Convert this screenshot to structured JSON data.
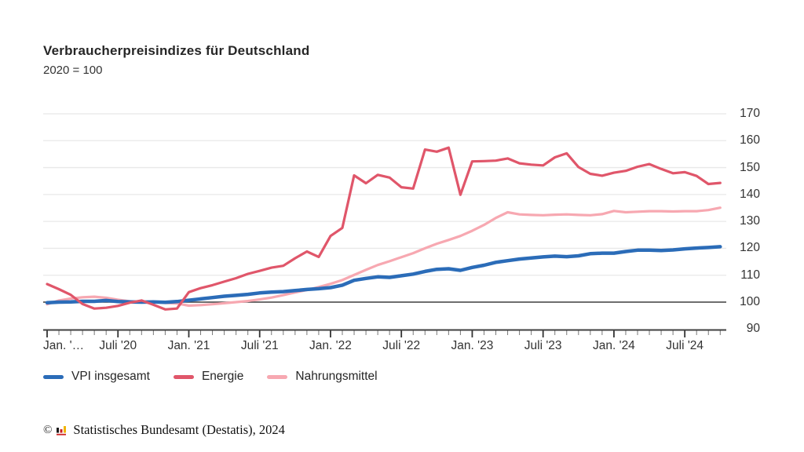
{
  "page": {
    "title": "Verbraucherpreisindizes für Deutschland",
    "subtitle": "2020 = 100",
    "footer": {
      "copyright": "©",
      "source": "Statistisches Bundesamt (Destatis), 2024"
    }
  },
  "colors": {
    "vpi_blue": "#2b6cb8",
    "energie_red": "#e0566a",
    "nahrungsmittel_pink": "#f7a8b1",
    "gridline": "#e8e8e8",
    "baseline": "#3f3f3f",
    "axis": "#404040",
    "tick_minor": "#777777",
    "tick_major": "#333333",
    "logo_black": "#1a1a1a",
    "logo_red": "#cc2222",
    "logo_gold": "#f0b400"
  },
  "chart_data": {
    "type": "line",
    "title": "Verbraucherpreisindizes für Deutschland",
    "subtitle": "2020 = 100",
    "x_unit": "month",
    "x_range": "Jan 2020 – Okt 2024",
    "x_tick_labels": [
      "Jan. '…",
      "Juli '20",
      "Jan. '21",
      "Juli '21",
      "Jan. '22",
      "Juli '22",
      "Jan. '23",
      "Juli '23",
      "Jan. '24",
      "Juli '24"
    ],
    "y_ticks": [
      170,
      160,
      150,
      140,
      130,
      120,
      110,
      100,
      90
    ],
    "ylim": [
      90,
      170
    ],
    "baseline": 100,
    "grid": "horizontal",
    "legend_position": "bottom-left",
    "draw_order": [
      2,
      0,
      1
    ],
    "series": [
      {
        "name": "VPI insgesamt",
        "color": "#2b6cb8",
        "width": 4.5,
        "values": [
          99.8,
          100.0,
          100.1,
          100.3,
          100.3,
          100.6,
          100.2,
          100.1,
          100.0,
          100.1,
          99.9,
          100.2,
          100.7,
          101.2,
          101.7,
          102.2,
          102.5,
          102.9,
          103.4,
          103.7,
          103.9,
          104.3,
          104.7,
          105.0,
          105.4,
          106.3,
          108.1,
          108.8,
          109.4,
          109.2,
          109.8,
          110.4,
          111.4,
          112.2,
          112.4,
          111.8,
          112.9,
          113.7,
          114.8,
          115.4,
          116.0,
          116.4,
          116.8,
          117.1,
          116.9,
          117.2,
          118.0,
          118.2,
          118.2,
          118.8,
          119.3,
          119.3,
          119.2,
          119.4,
          119.8,
          120.1,
          120.3,
          120.6
        ]
      },
      {
        "name": "Energie",
        "color": "#e0566a",
        "width": 3.2,
        "values": [
          106.7,
          104.8,
          102.7,
          99.3,
          97.6,
          97.9,
          98.6,
          99.8,
          100.6,
          99.0,
          97.3,
          97.6,
          103.7,
          105.2,
          106.3,
          107.6,
          108.9,
          110.5,
          111.6,
          112.8,
          113.5,
          116.3,
          118.8,
          116.8,
          124.6,
          127.6,
          147.1,
          144.2,
          147.3,
          146.3,
          142.7,
          142.2,
          156.7,
          155.9,
          157.4,
          139.9,
          152.3,
          152.4,
          152.6,
          153.4,
          151.6,
          151.1,
          150.8,
          153.8,
          155.3,
          150.2,
          147.7,
          147.0,
          148.1,
          148.8,
          150.3,
          151.3,
          149.5,
          147.9,
          148.3,
          146.9,
          143.9,
          144.3
        ]
      },
      {
        "name": "Nahrungsmittel",
        "color": "#f7a8b1",
        "width": 3.2,
        "values": [
          99.2,
          100.6,
          101.3,
          101.8,
          102.0,
          101.6,
          100.9,
          100.3,
          99.9,
          100.1,
          99.7,
          99.5,
          98.7,
          98.9,
          99.2,
          99.6,
          100.0,
          100.4,
          101.0,
          101.7,
          102.6,
          103.6,
          104.5,
          105.6,
          106.8,
          108.2,
          110.1,
          112.0,
          113.8,
          115.2,
          116.7,
          118.2,
          120.0,
          121.7,
          123.1,
          124.6,
          126.5,
          128.7,
          131.3,
          133.4,
          132.6,
          132.4,
          132.3,
          132.5,
          132.6,
          132.4,
          132.3,
          132.7,
          133.9,
          133.4,
          133.6,
          133.8,
          133.8,
          133.7,
          133.8,
          133.8,
          134.2,
          135.1
        ]
      }
    ]
  }
}
